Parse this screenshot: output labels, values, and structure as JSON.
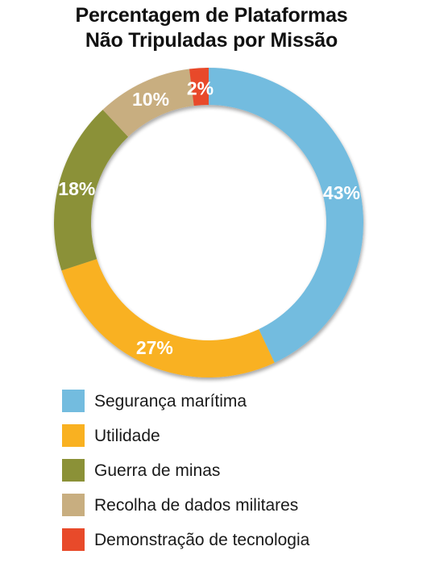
{
  "chart_data": {
    "type": "pie",
    "variant": "donut",
    "title_lines": [
      "Percentagem de Plataformas",
      "Não Tripuladas por Missão"
    ],
    "categories": [
      "Segurança marítima",
      "Utilidade",
      "Guerra de minas",
      "Recolha de dados militares",
      "Demonstração de tecnologia"
    ],
    "values": [
      43,
      27,
      18,
      10,
      2
    ],
    "data_labels": [
      "43%",
      "27%",
      "18%",
      "10%",
      "2%"
    ],
    "colors": [
      "#73bcdf",
      "#f9b121",
      "#8b9137",
      "#c8ae80",
      "#e84a2a"
    ],
    "start": "top, clockwise",
    "legend_position": "bottom"
  }
}
